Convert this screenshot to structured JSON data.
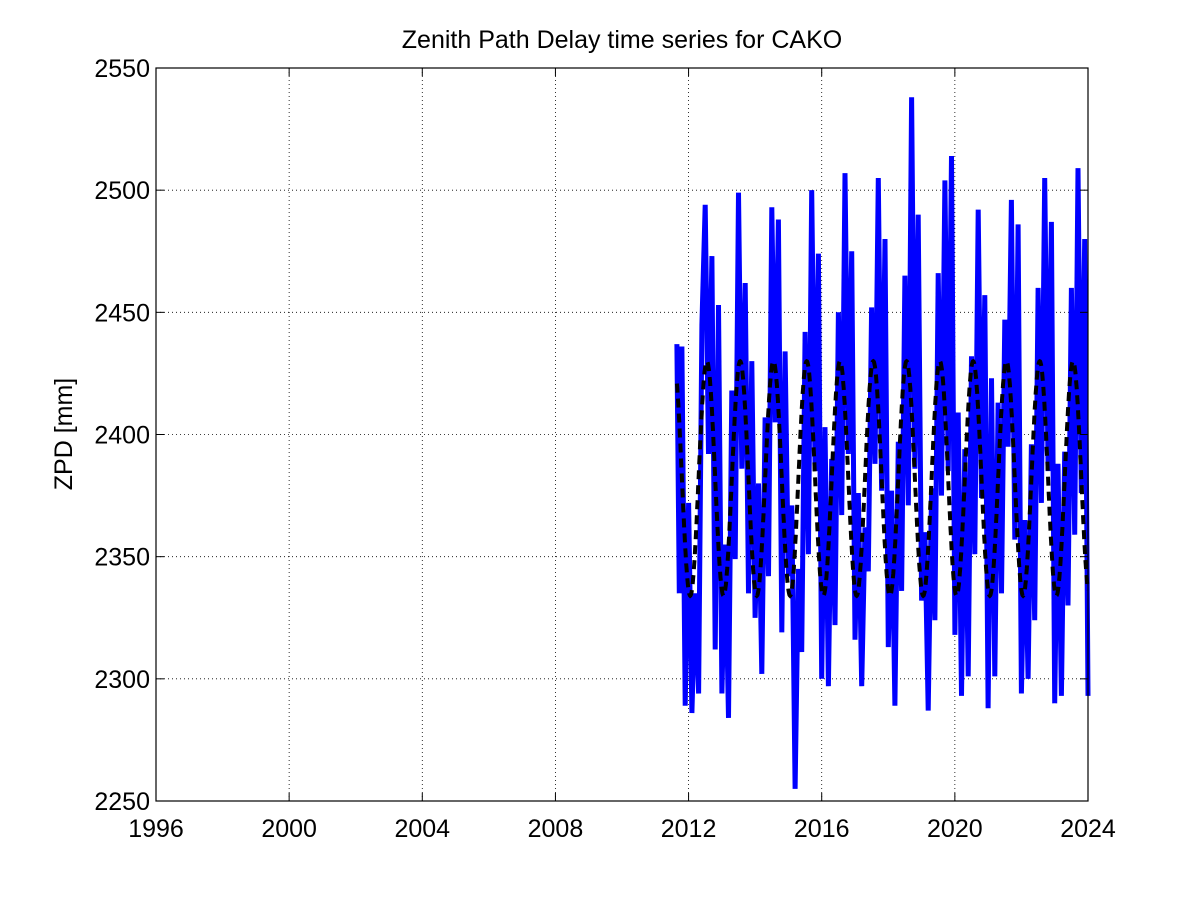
{
  "chart_data": {
    "type": "line",
    "title": "Zenith Path Delay time series for CAKO",
    "xlabel": "",
    "ylabel": "ZPD [mm]",
    "xlim": [
      1996,
      2024
    ],
    "ylim": [
      2250,
      2550
    ],
    "xticks": [
      1996,
      2000,
      2004,
      2008,
      2012,
      2016,
      2020,
      2024
    ],
    "yticks": [
      2250,
      2300,
      2350,
      2400,
      2450,
      2500,
      2550
    ],
    "grid": true,
    "legend": "none",
    "colors": {
      "observed": "#0000ff",
      "fit": "#000000"
    },
    "series": [
      {
        "style": "solid",
        "x": [
          2011.65,
          2011.72,
          2011.8,
          2011.9,
          2012.0,
          2012.1,
          2012.2,
          2012.3,
          2012.4,
          2012.5,
          2012.6,
          2012.7,
          2012.8,
          2012.9,
          2013.0,
          2013.1,
          2013.2,
          2013.3,
          2013.4,
          2013.5,
          2013.6,
          2013.7,
          2013.8,
          2013.9,
          2014.0,
          2014.1,
          2014.2,
          2014.3,
          2014.4,
          2014.5,
          2014.6,
          2014.7,
          2014.8,
          2014.9,
          2015.0,
          2015.1,
          2015.2,
          2015.3,
          2015.4,
          2015.5,
          2015.6,
          2015.7,
          2015.8,
          2015.9,
          2016.0,
          2016.1,
          2016.2,
          2016.3,
          2016.4,
          2016.5,
          2016.6,
          2016.7,
          2016.8,
          2016.9,
          2017.0,
          2017.1,
          2017.2,
          2017.3,
          2017.4,
          2017.5,
          2017.6,
          2017.7,
          2017.8,
          2017.9,
          2018.0,
          2018.1,
          2018.2,
          2018.3,
          2018.4,
          2018.5,
          2018.6,
          2018.7,
          2018.8,
          2018.9,
          2019.0,
          2019.1,
          2019.2,
          2019.3,
          2019.4,
          2019.5,
          2019.6,
          2019.7,
          2019.8,
          2019.9,
          2020.0,
          2020.1,
          2020.2,
          2020.3,
          2020.4,
          2020.5,
          2020.6,
          2020.7,
          2020.8,
          2020.9,
          2021.0,
          2021.1,
          2021.2,
          2021.3,
          2021.4,
          2021.5,
          2021.6,
          2021.7,
          2021.8,
          2021.9,
          2022.0,
          2022.1,
          2022.2,
          2022.3,
          2022.4,
          2022.5,
          2022.6,
          2022.7,
          2022.8,
          2022.9,
          2023.0,
          2023.1,
          2023.2,
          2023.3,
          2023.4,
          2023.5,
          2023.6,
          2023.7,
          2023.8,
          2023.9,
          2024.0
        ],
        "y": [
          2437,
          2335,
          2436,
          2289,
          2372,
          2286,
          2335,
          2294,
          2445,
          2494,
          2392,
          2473,
          2312,
          2453,
          2294,
          2355,
          2284,
          2418,
          2349,
          2499,
          2386,
          2462,
          2335,
          2430,
          2325,
          2380,
          2302,
          2407,
          2342,
          2493,
          2405,
          2488,
          2319,
          2434,
          2342,
          2371,
          2255,
          2345,
          2311,
          2442,
          2351,
          2500,
          2385,
          2474,
          2300,
          2403,
          2297,
          2390,
          2322,
          2450,
          2367,
          2507,
          2392,
          2475,
          2316,
          2376,
          2297,
          2362,
          2344,
          2452,
          2388,
          2505,
          2377,
          2480,
          2313,
          2377,
          2289,
          2397,
          2336,
          2465,
          2371,
          2538,
          2386,
          2490,
          2332,
          2360,
          2287,
          2378,
          2324,
          2466,
          2375,
          2504,
          2385,
          2514,
          2318,
          2409,
          2293,
          2394,
          2301,
          2432,
          2351,
          2492,
          2374,
          2457,
          2288,
          2423,
          2301,
          2413,
          2335,
          2447,
          2395,
          2496,
          2357,
          2486,
          2294,
          2365,
          2300,
          2396,
          2324,
          2460,
          2372,
          2505,
          2385,
          2487,
          2290,
          2388,
          2293,
          2393,
          2330,
          2460,
          2359,
          2509,
          2376,
          2480,
          2293
        ]
      },
      {
        "style": "dashed",
        "mean": 2382,
        "amplitude": 48,
        "period_years": 1,
        "x_start": 2011.65,
        "x_end": 2024.0
      }
    ]
  }
}
